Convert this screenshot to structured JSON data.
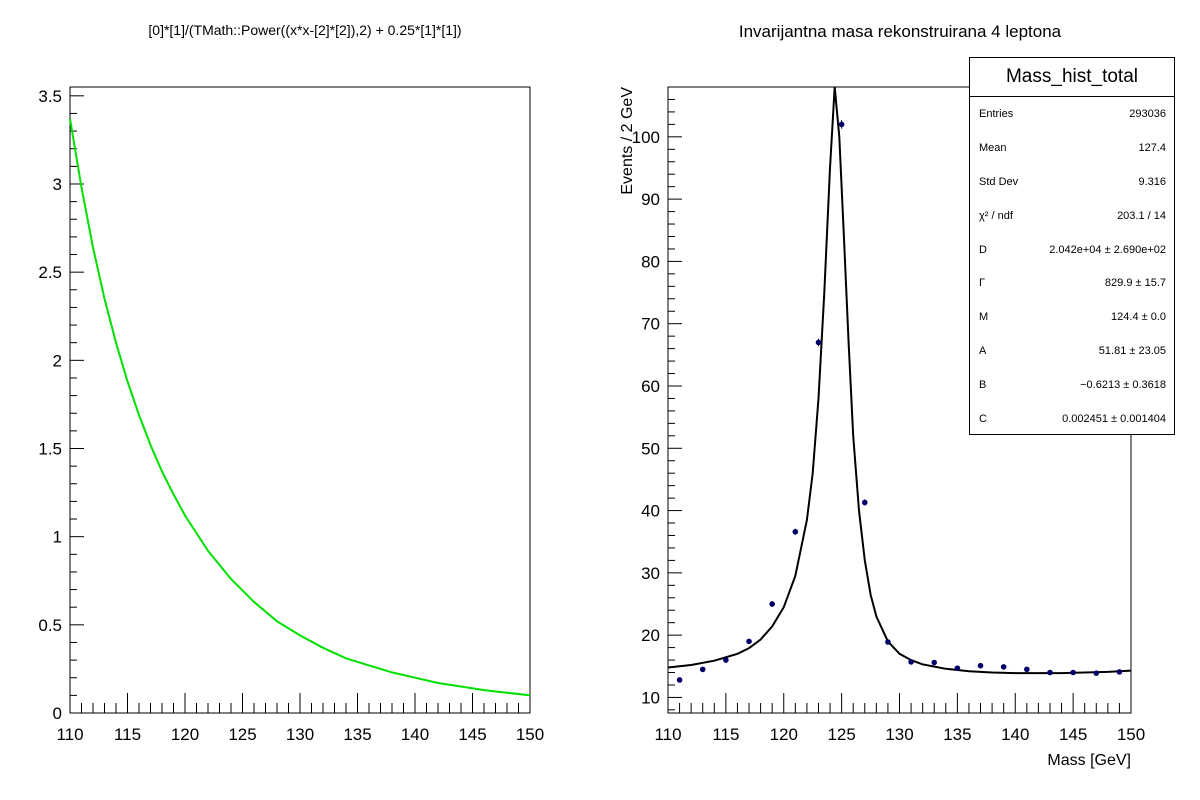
{
  "chart_data": [
    {
      "type": "line",
      "title": "[0]*[1]/(TMath::Power((x*x-[2]*[2]),2) + 0.25*[1]*[1])",
      "xlabel": "",
      "ylabel": "",
      "xlim": [
        110,
        150
      ],
      "ylim": [
        0,
        3.55
      ],
      "x_ticks": [
        110,
        115,
        120,
        125,
        130,
        135,
        140,
        145,
        150
      ],
      "y_ticks": [
        0,
        0.5,
        1,
        1.5,
        2,
        2.5,
        3,
        3.5
      ],
      "grid": false,
      "color": "#00e000",
      "series": [
        {
          "x": [
            110,
            111,
            112,
            113,
            114,
            115,
            116,
            117,
            118,
            119,
            120,
            122,
            124,
            126,
            128,
            130,
            132,
            134,
            136,
            138,
            140,
            142,
            144,
            146,
            148,
            150
          ],
          "values": [
            3.37,
            2.98,
            2.64,
            2.35,
            2.1,
            1.88,
            1.69,
            1.52,
            1.37,
            1.24,
            1.12,
            0.92,
            0.76,
            0.63,
            0.52,
            0.44,
            0.37,
            0.31,
            0.27,
            0.23,
            0.2,
            0.17,
            0.15,
            0.13,
            0.115,
            0.1
          ]
        }
      ]
    },
    {
      "type": "scatter",
      "title": "Invarijantna masa rekonstruirana 4 leptona",
      "xlabel": "Mass [GeV]",
      "ylabel": "Events / 2 GeV",
      "xlim": [
        110,
        150
      ],
      "ylim": [
        7.5,
        108
      ],
      "x_ticks": [
        110,
        115,
        120,
        125,
        130,
        135,
        140,
        145,
        150
      ],
      "y_ticks": [
        10,
        20,
        30,
        40,
        50,
        60,
        70,
        80,
        90,
        100
      ],
      "grid": false,
      "legend": "top-right",
      "series": [
        {
          "x": [
            111,
            113,
            115,
            117,
            119,
            121,
            123,
            125,
            127,
            129,
            131,
            133,
            135,
            137,
            139,
            141,
            143,
            145,
            147,
            149
          ],
          "values": [
            12.8,
            14.5,
            16.0,
            19.0,
            25.0,
            36.6,
            67.0,
            102.0,
            41.3,
            18.9,
            15.7,
            15.6,
            14.7,
            15.1,
            14.9,
            14.5,
            14.0,
            14.0,
            13.9,
            14.1
          ],
          "errors": [
            0.35,
            0.4,
            0.45,
            0.4,
            0.45,
            0.5,
            0.6,
            0.7,
            0.5,
            0.4,
            0.4,
            0.4,
            0.4,
            0.4,
            0.4,
            0.35,
            0.35,
            0.35,
            0.35,
            0.4
          ],
          "color": "#000066"
        },
        {
          "x": [
            110,
            112,
            114,
            116,
            117,
            118,
            119,
            120,
            121,
            122,
            122.5,
            123,
            123.5,
            124,
            124.4,
            124.8,
            125.2,
            125.6,
            126,
            126.5,
            127,
            127.5,
            128,
            129,
            130,
            131,
            132,
            134,
            136,
            138,
            140,
            142,
            144,
            146,
            148,
            150
          ],
          "values": [
            14.8,
            15.2,
            15.9,
            17.0,
            17.9,
            19.3,
            21.4,
            24.5,
            29.5,
            38.5,
            46.0,
            58.0,
            75.0,
            95.0,
            108,
            100,
            84,
            67,
            52,
            40,
            32,
            26.5,
            23,
            19,
            17,
            16,
            15.3,
            14.6,
            14.2,
            14.0,
            13.9,
            13.9,
            13.9,
            14.0,
            14.1,
            14.3
          ],
          "color": "#000000"
        }
      ],
      "stats_box": {
        "title": "Mass_hist_total",
        "rows": [
          {
            "label": "Entries",
            "value": "293036"
          },
          {
            "label": "Mean",
            "value": "127.4"
          },
          {
            "label": "Std Dev",
            "value": "9.316"
          },
          {
            "label": "χ² / ndf",
            "value": "203.1 / 14"
          },
          {
            "label": "D",
            "value": "2.042e+04 ± 2.690e+02"
          },
          {
            "label": "Γ",
            "value": "829.9 ± 15.7"
          },
          {
            "label": "M",
            "value": "124.4 ± 0.0"
          },
          {
            "label": "A",
            "value": "51.81 ± 23.05"
          },
          {
            "label": "B",
            "value": "−0.6213 ± 0.3618"
          },
          {
            "label": "C",
            "value": "0.002451 ± 0.001404"
          }
        ]
      }
    }
  ]
}
